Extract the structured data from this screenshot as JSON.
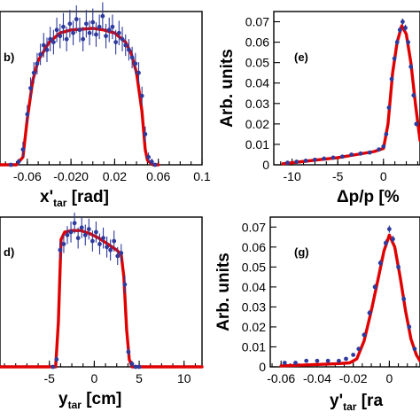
{
  "chart_data": [
    {
      "id": "b",
      "type": "line",
      "panel_label": "b)",
      "xlabel_main": "x'",
      "xlabel_sub": "tar",
      "xlabel_unit": " [rad]",
      "ylabel": "",
      "xlim": [
        -0.085,
        0.1
      ],
      "ylim": [
        0,
        1.0
      ],
      "xticks": [
        -0.06,
        -0.02,
        0.02,
        0.06,
        0.1
      ],
      "xticklabels": [
        "-0.06",
        "-0.020",
        "0.02",
        "0.06",
        "0.1"
      ],
      "yticks": [],
      "series": [
        {
          "role": "fit",
          "x": [
            -0.085,
            -0.07,
            -0.064,
            -0.06,
            -0.055,
            -0.05,
            -0.04,
            -0.03,
            -0.02,
            -0.01,
            0.0,
            0.01,
            0.02,
            0.03,
            0.035,
            0.04,
            0.045,
            0.048,
            0.05,
            0.055,
            0.06
          ],
          "y": [
            0.0,
            0.0,
            0.05,
            0.3,
            0.55,
            0.68,
            0.8,
            0.86,
            0.88,
            0.885,
            0.89,
            0.88,
            0.86,
            0.8,
            0.73,
            0.6,
            0.35,
            0.1,
            0.03,
            0.0,
            0.0
          ]
        },
        {
          "role": "data",
          "x": [
            -0.075,
            -0.068,
            -0.064,
            -0.06,
            -0.057,
            -0.054,
            -0.051,
            -0.048,
            -0.045,
            -0.042,
            -0.039,
            -0.036,
            -0.033,
            -0.03,
            -0.027,
            -0.024,
            -0.021,
            -0.018,
            -0.015,
            -0.012,
            -0.009,
            -0.006,
            -0.003,
            0.0,
            0.003,
            0.006,
            0.009,
            0.012,
            0.015,
            0.018,
            0.021,
            0.024,
            0.027,
            0.03,
            0.033,
            0.036,
            0.039,
            0.042,
            0.045,
            0.048,
            0.051,
            0.054,
            0.057
          ],
          "y": [
            0.0,
            0.02,
            0.1,
            0.33,
            0.5,
            0.6,
            0.66,
            0.72,
            0.78,
            0.75,
            0.82,
            0.8,
            0.88,
            0.84,
            0.9,
            0.82,
            0.92,
            0.86,
            0.95,
            0.88,
            0.82,
            0.92,
            0.86,
            0.93,
            0.85,
            0.9,
            0.97,
            0.84,
            0.88,
            0.9,
            0.8,
            0.86,
            0.82,
            0.78,
            0.75,
            0.7,
            0.66,
            0.6,
            0.45,
            0.2,
            0.05,
            0.02,
            0.0
          ],
          "err": [
            0.01,
            0.02,
            0.05,
            0.06,
            0.07,
            0.07,
            0.07,
            0.07,
            0.08,
            0.08,
            0.08,
            0.08,
            0.08,
            0.08,
            0.09,
            0.08,
            0.09,
            0.08,
            0.09,
            0.08,
            0.08,
            0.09,
            0.08,
            0.09,
            0.08,
            0.08,
            0.09,
            0.08,
            0.08,
            0.08,
            0.08,
            0.08,
            0.08,
            0.07,
            0.07,
            0.07,
            0.07,
            0.07,
            0.06,
            0.05,
            0.03,
            0.02,
            0.01
          ]
        }
      ]
    },
    {
      "id": "e",
      "type": "line",
      "panel_label": "(e)",
      "xlabel_main": "Δp/p [%",
      "xlabel_sub": "",
      "xlabel_unit": "",
      "ylabel": "Arb. units",
      "xlim": [
        -12,
        4
      ],
      "ylim": [
        0,
        0.075
      ],
      "xticks": [
        -10,
        -5,
        0
      ],
      "xticklabels": [
        "-10",
        "-5",
        "0"
      ],
      "yticks": [
        0,
        0.01,
        0.02,
        0.03,
        0.04,
        0.05,
        0.06,
        0.07
      ],
      "yticklabels": [
        "0",
        "0.01",
        "0.02",
        "0.03",
        "0.04",
        "0.05",
        "0.06",
        "0.07"
      ],
      "series": [
        {
          "role": "fit",
          "x": [
            -11,
            -9,
            -7,
            -5,
            -3,
            -1,
            0,
            0.5,
            1,
            1.5,
            2,
            2.5,
            3,
            3.5,
            4
          ],
          "y": [
            0.0005,
            0.0015,
            0.0025,
            0.0035,
            0.005,
            0.0065,
            0.008,
            0.02,
            0.045,
            0.06,
            0.068,
            0.064,
            0.05,
            0.03,
            0.012
          ]
        },
        {
          "role": "data",
          "x": [
            -10.5,
            -9.5,
            -8.5,
            -7.5,
            -6.5,
            -5.5,
            -4.5,
            -3.5,
            -2.5,
            -1.5,
            -0.5,
            0,
            0.3,
            0.6,
            0.9,
            1.2,
            1.5,
            1.8,
            2.1,
            2.4,
            2.7,
            3.0,
            3.3,
            3.6
          ],
          "y": [
            0.001,
            0.0015,
            0.002,
            0.0025,
            0.003,
            0.0035,
            0.004,
            0.005,
            0.0055,
            0.006,
            0.0075,
            0.009,
            0.015,
            0.028,
            0.042,
            0.052,
            0.06,
            0.066,
            0.07,
            0.067,
            0.06,
            0.048,
            0.034,
            0.02
          ],
          "err": [
            0.0005,
            0.0005,
            0.0005,
            0.0005,
            0.0005,
            0.0005,
            0.0006,
            0.0006,
            0.0006,
            0.0006,
            0.0007,
            0.0008,
            0.001,
            0.0012,
            0.0015,
            0.0015,
            0.0015,
            0.0016,
            0.0016,
            0.0016,
            0.0015,
            0.0015,
            0.0013,
            0.0012
          ]
        }
      ]
    },
    {
      "id": "d",
      "type": "line",
      "panel_label": "d)",
      "xlabel_main": "y",
      "xlabel_sub": "tar",
      "xlabel_unit": " [cm]",
      "ylabel": "",
      "xlim": [
        -10.5,
        12
      ],
      "ylim": [
        0,
        1.0
      ],
      "xticks": [
        -5,
        0,
        5,
        10
      ],
      "xticklabels": [
        "-5",
        "0",
        "5",
        "10"
      ],
      "yticks": [],
      "series": [
        {
          "role": "fit",
          "x": [
            -10.5,
            -4.3,
            -4.0,
            -3.7,
            -3.3,
            -2.5,
            -1.5,
            -0.5,
            0.5,
            1.5,
            2.5,
            3.0,
            3.3,
            3.6,
            3.9,
            4.2,
            12
          ],
          "y": [
            0.0,
            0.0,
            0.3,
            0.85,
            0.9,
            0.91,
            0.91,
            0.89,
            0.86,
            0.82,
            0.78,
            0.75,
            0.6,
            0.25,
            0.05,
            0.0,
            0.0
          ]
        },
        {
          "role": "data",
          "x": [
            -4.6,
            -4.2,
            -3.8,
            -3.4,
            -3.0,
            -2.6,
            -2.2,
            -1.8,
            -1.4,
            -1.0,
            -0.6,
            -0.2,
            0.2,
            0.6,
            1.0,
            1.4,
            1.8,
            2.2,
            2.6,
            3.0,
            3.4,
            3.8,
            4.2,
            4.6,
            5.0
          ],
          "y": [
            0.0,
            0.05,
            0.78,
            0.82,
            0.88,
            0.9,
            0.96,
            0.86,
            0.93,
            0.88,
            0.92,
            0.84,
            0.9,
            0.82,
            0.86,
            0.8,
            0.78,
            0.84,
            0.74,
            0.76,
            0.55,
            0.1,
            0.02,
            0.0,
            0.0
          ],
          "err": [
            0.01,
            0.02,
            0.06,
            0.06,
            0.06,
            0.07,
            0.07,
            0.07,
            0.07,
            0.07,
            0.07,
            0.07,
            0.07,
            0.07,
            0.07,
            0.07,
            0.07,
            0.07,
            0.06,
            0.06,
            0.06,
            0.03,
            0.02,
            0.01,
            0.01
          ]
        }
      ]
    },
    {
      "id": "g",
      "type": "line",
      "panel_label": "(g)",
      "xlabel_main": "y'",
      "xlabel_sub": "tar",
      "xlabel_unit": " [ra",
      "ylabel": "Arb. units",
      "xlim": [
        -0.066,
        0.017
      ],
      "ylim": [
        0,
        0.075
      ],
      "xticks": [
        -0.06,
        -0.04,
        -0.02,
        0
      ],
      "xticklabels": [
        "-0.06",
        "-0.04",
        "-0.02",
        "0"
      ],
      "yticks": [
        0,
        0.01,
        0.02,
        0.03,
        0.04,
        0.05,
        0.06,
        0.07
      ],
      "yticklabels": [
        "0",
        "0.01",
        "0.02",
        "0.03",
        "0.04",
        "0.05",
        "0.06",
        "0.07"
      ],
      "series": [
        {
          "role": "fit",
          "x": [
            -0.06,
            -0.03,
            -0.022,
            -0.018,
            -0.014,
            -0.01,
            -0.006,
            -0.003,
            0.0,
            0.003,
            0.006,
            0.009,
            0.012,
            0.015,
            0.017
          ],
          "y": [
            0.0005,
            0.0015,
            0.002,
            0.004,
            0.013,
            0.028,
            0.045,
            0.058,
            0.066,
            0.06,
            0.045,
            0.028,
            0.014,
            0.006,
            0.003
          ]
        },
        {
          "role": "data",
          "x": [
            -0.058,
            -0.052,
            -0.046,
            -0.04,
            -0.034,
            -0.028,
            -0.024,
            -0.02,
            -0.017,
            -0.014,
            -0.011,
            -0.008,
            -0.005,
            -0.002,
            0.0,
            0.002,
            0.005,
            0.008,
            0.011,
            0.014
          ],
          "y": [
            0.002,
            0.002,
            0.003,
            0.003,
            0.003,
            0.003,
            0.004,
            0.006,
            0.009,
            0.016,
            0.027,
            0.04,
            0.052,
            0.062,
            0.069,
            0.064,
            0.05,
            0.034,
            0.02,
            0.009
          ],
          "err": [
            0.0006,
            0.0006,
            0.0006,
            0.0006,
            0.0006,
            0.0006,
            0.0007,
            0.0008,
            0.001,
            0.0012,
            0.0014,
            0.0015,
            0.0016,
            0.0017,
            0.0018,
            0.0017,
            0.0016,
            0.0015,
            0.0013,
            0.0011
          ]
        }
      ]
    }
  ],
  "colors": {
    "fit": "#e00000",
    "data": "#2e3a9c",
    "frame": "#000000"
  }
}
